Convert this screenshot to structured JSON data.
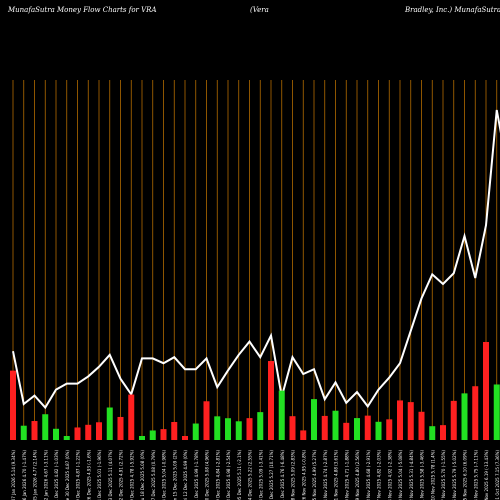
{
  "chart_data": {
    "type": "bar",
    "title_parts": [
      "MunafaSutra  Money Flow  Charts for VRA",
      "(Vera",
      "Bradley,  Inc.) MunafaSutra.com"
    ],
    "x": [
      "Wed 07 Jan 2026 5.14 (9.34%)",
      "Tue 06 Jan 2026 4.70 (-1.47%)",
      "Mon 05 Jan 2026 4.77 (2.14%)",
      "Fri 02 Jan 2026 4.67 (-3.11%)",
      "Wed 31 Dec 2025 4.82 (-1.03%)",
      "Tue 30 Dec 2025 4.87 (0%)",
      "Mon 29 Dec 2025 4.87 (-1.22%)",
      "Fri 26 Dec 2025 4.93 (-1.6%)",
      "Wed 24 Dec 2025 5.01 (-1.96%)",
      "Tue 23 Dec 2025 5.11 (4.07%)",
      "Mon 22 Dec 2025 4.91 (2.72%)",
      "Fri 19 Dec 2025 4.78 (-5.92%)",
      "Thu 18 Dec 2025 5.08 (0%)",
      "Wed 17 Dec 2025 5.08 (0.79%)",
      "Tue 16 Dec 2025 5.04 (-0.98%)",
      "Mon 15 Dec 2025 5.09 (2%)",
      "Fri 12 Dec 2025 4.99 (0%)",
      "Thu 11 Dec 2025 4.99 (-1.78%)",
      "Wed 10 Dec 2025 5.08 (4.96%)",
      "Tue 09 Dec 2025 4.84 (-2.81%)",
      "Mon 08 Dec 2025 4.98 (-2.54%)",
      "Fri 05 Dec 2025 5.11 (-2.1%)",
      "Thu 04 Dec 2025 5.22 (2.55%)",
      "Wed 03 Dec 2025 5.09 (-3.41%)",
      "Tue 02 Dec 2025 5.27 (10.71%)",
      "Mon 01 Dec 2025 4.76 (-6.48%)",
      "Fri 28 Nov 2025 5.09 (2.83%)",
      "Wed 26 Nov 2025 4.95 (-0.8%)",
      "Tue 25 Nov 2025 4.99 (5.27%)",
      "Mon 24 Nov 2025 4.74 (-2.87%)",
      "Fri 21 Nov 2025 4.88 (3.61%)",
      "Thu 20 Nov 2025 4.71 (-1.88%)",
      "Wed 19 Nov 2025 4.80 (2.56%)",
      "Tue 18 Nov 2025 4.68 (-2.91%)",
      "Mon 17 Nov 2025 4.82 (-2.03%)",
      "Fri 14 Nov 2025 4.92 (-2.38%)",
      "Thu 13 Nov 2025 5.04 (-5.08%)",
      "Wed 12 Nov 2025 5.31 (-4.84%)",
      "Tue 11 Nov 2025 5.58 (-3.46%)",
      "Mon 10 Nov 2025 5.78 (1.4%)",
      "Fri 07 Nov 2025 5.70 (-1.55%)",
      "Thu 06 Nov 2025 5.79 (-5.02%)",
      "Wed 05 Nov 2025 6.10 (6.09%)",
      "Tue 04 Nov 2025 5.75 (-7.11%)",
      "Mon 03 Nov 2025 6.19 (-13.43%)",
      "Fri 31 Oct 2025 7.15 (7.36%)",
      "Thu 30 Oct 2025 6.66 (-4.86%)",
      "Wed 29 Oct 2025 7.00 (-1.27%)",
      "Tue 28 Oct 2025 7.09 (1.29%)",
      "Mon 27 Oct 2025 7.00 (-1.96%)",
      "Fri 24 Oct 2025 7.14 (3.48%)",
      "Thu 23 Oct 2025 6.90 (-4.57%)",
      "Wed 22 Oct 2025 7.23 (-1.5%)",
      "Tue 21 Oct 2025 7.34 (4.26%)",
      "Mon 20 Oct 2025 7.04 (1.59%)",
      "Fri 17 Oct 2025 6.93 (-7.6%)",
      "Thu 16 Oct 2025 7.50 (-1.7%)",
      "Wed 15 Oct 2025 7.63 (6.27%)"
    ],
    "bar_colors": {
      "up": "#00ff00",
      "down": "#ff0000"
    },
    "flow_bar_colors": [
      "#ff2020",
      "#22e022",
      "#ff2020",
      "#22e022",
      "#22e022",
      "#22e022",
      "#ff2020",
      "#ff2020",
      "#ff2020",
      "#22e022",
      "#ff2020",
      "#ff2020",
      "#22e022",
      "#22e022",
      "#ff2020",
      "#ff2020",
      "#ff2020",
      "#22e022",
      "#ff2020",
      "#22e022",
      "#22e022",
      "#22e022",
      "#ff2020",
      "#22e022",
      "#ff2020",
      "#22e022",
      "#ff2020",
      "#ff2020",
      "#22e022",
      "#ff2020",
      "#22e022",
      "#ff2020",
      "#22e022",
      "#ff2020",
      "#22e022",
      "#ff2020",
      "#ff2020",
      "#ff2020",
      "#ff2020",
      "#22e022",
      "#ff2020",
      "#ff2020",
      "#22e022",
      "#ff2020",
      "#ff2020",
      "#22e022",
      "#ff2020",
      "#ff2020",
      "#22e022",
      "#ff2020",
      "#22e022",
      "#ff2020",
      "#ff2020",
      "#22e022",
      "#22e022",
      "#ff2020",
      "#ff2020",
      "#22e022"
    ],
    "price_line": [
      5.14,
      4.7,
      4.77,
      4.67,
      4.82,
      4.87,
      4.87,
      4.93,
      5.01,
      5.11,
      4.91,
      4.78,
      5.08,
      5.08,
      5.04,
      5.09,
      4.99,
      4.99,
      5.08,
      4.84,
      4.98,
      5.11,
      5.22,
      5.09,
      5.27,
      4.76,
      5.09,
      4.95,
      4.99,
      4.74,
      4.88,
      4.71,
      4.8,
      4.68,
      4.82,
      4.92,
      5.04,
      5.31,
      5.58,
      5.78,
      5.7,
      5.79,
      6.1,
      5.75,
      6.19,
      7.15,
      6.66,
      7,
      7.09,
      7,
      7.14,
      6.9,
      7.23,
      7.34,
      7.04,
      6.93,
      7.5,
      7.63
    ],
    "price_line_color": "#ffffff",
    "gridline_color": "#b36b00",
    "background": "#000000"
  }
}
